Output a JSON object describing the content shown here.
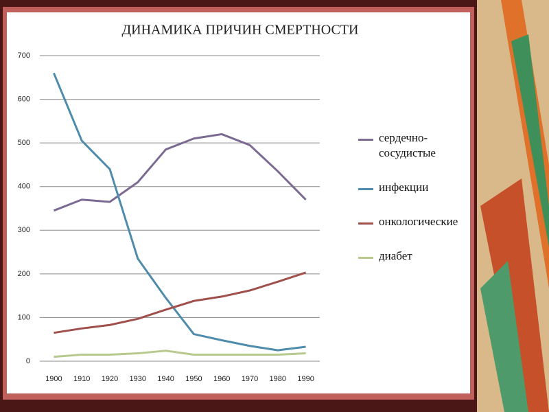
{
  "chart_data": {
    "type": "line",
    "title": "ДИНАМИКА ПРИЧИН СМЕРТНОСТИ",
    "categories": [
      "1900",
      "1910",
      "1920",
      "1930",
      "1940",
      "1950",
      "1960",
      "1970",
      "1980",
      "1990"
    ],
    "series": [
      {
        "name": "сердечно-сосудистые",
        "color": "#7b6a92",
        "values": [
          345,
          370,
          365,
          410,
          485,
          510,
          520,
          495,
          435,
          370
        ]
      },
      {
        "name": "инфекции",
        "color": "#4f8cab",
        "values": [
          660,
          505,
          440,
          235,
          145,
          62,
          48,
          35,
          25,
          33
        ]
      },
      {
        "name": "онкологические",
        "color": "#a0504c",
        "values": [
          65,
          75,
          83,
          97,
          118,
          138,
          148,
          162,
          182,
          203
        ]
      },
      {
        "name": "диабет",
        "color": "#b7c98c",
        "values": [
          10,
          15,
          15,
          18,
          24,
          15,
          15,
          15,
          15,
          18
        ]
      }
    ],
    "ylim": [
      0,
      700
    ],
    "yticks": [
      0,
      100,
      200,
      300,
      400,
      500,
      600,
      700
    ],
    "grid": true
  }
}
